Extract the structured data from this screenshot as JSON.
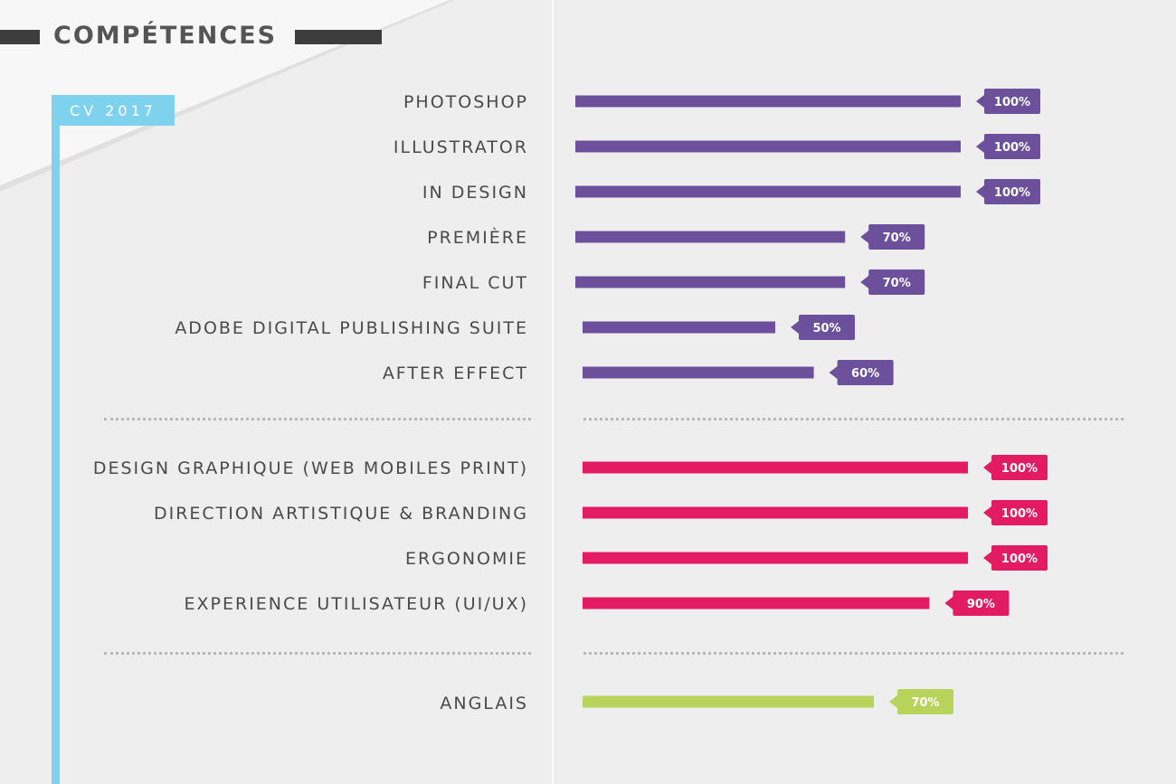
{
  "header": {
    "title": "COMPÉTENCES",
    "tag": "CV 2017"
  },
  "colors": {
    "software": "#6d509b",
    "skills": "#e31b62",
    "languages": "#b8d35a",
    "tab": "#7fd2ee",
    "title_bars": "#3d3d3d"
  },
  "chart_data": [
    {
      "type": "bar",
      "orientation": "horizontal",
      "categories": [
        "PHOTOSHOP",
        "ILLUSTRATOR",
        "IN DESIGN",
        "PREMIÈRE",
        "FINAL CUT",
        "ADOBE DIGITAL PUBLISHING SUITE",
        "AFTER EFFECT"
      ],
      "values": [
        100,
        100,
        100,
        70,
        70,
        50,
        60
      ],
      "labels": [
        "100%",
        "100%",
        "100%",
        "70%",
        "70%",
        "50%",
        "60%"
      ],
      "unit": "%",
      "xlim": [
        0,
        100
      ],
      "color": "#6d509b"
    },
    {
      "type": "bar",
      "orientation": "horizontal",
      "categories": [
        "DESIGN GRAPHIQUE (WEB MOBILES PRINT)",
        "DIRECTION ARTISTIQUE & BRANDING",
        "ERGONOMIE",
        "EXPERIENCE UTILISATEUR (UI/UX)"
      ],
      "values": [
        100,
        100,
        100,
        90
      ],
      "labels": [
        "100%",
        "100%",
        "100%",
        "90%"
      ],
      "unit": "%",
      "xlim": [
        0,
        100
      ],
      "color": "#e31b62"
    },
    {
      "type": "bar",
      "orientation": "horizontal",
      "categories": [
        "ANGLAIS"
      ],
      "values": [
        70
      ],
      "labels": [
        "70%"
      ],
      "unit": "%",
      "xlim": [
        0,
        100
      ],
      "color": "#b8d35a"
    }
  ]
}
